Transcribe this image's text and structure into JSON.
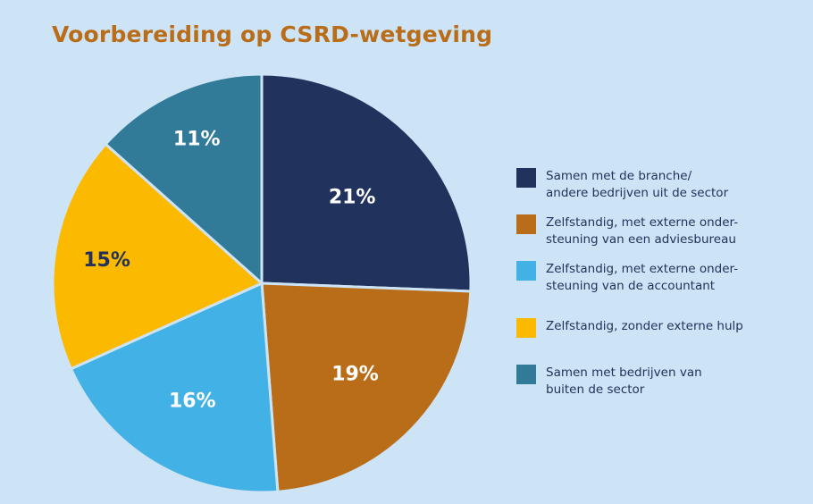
{
  "chart_data": {
    "type": "pie",
    "title": "Voorbereiding op CSRD-wetgeving",
    "legend_position": "right",
    "start": "top",
    "direction": "clockwise",
    "slices": [
      {
        "label": "Samen met de branche/ andere bedrijven uit de sector",
        "label_lines": [
          "Samen met de branche/",
          "andere bedrijven uit de sector"
        ],
        "value": 21,
        "display": "21%",
        "color": "#21335c",
        "text_color": "#ffffff"
      },
      {
        "label": "Zelfstandig, met externe ondersteuning van een adviesbureau",
        "label_lines": [
          "Zelfstandig, met externe onder-",
          "steuning van een adviesbureau"
        ],
        "value": 19,
        "display": "19%",
        "color": "#b96d18",
        "text_color": "#ffffff"
      },
      {
        "label": "Zelfstandig, met externe ondersteuning van de accountant",
        "label_lines": [
          "Zelfstandig, met externe onder-",
          "steuning van de accountant"
        ],
        "value": 16,
        "display": "16%",
        "color": "#42b1e6",
        "text_color": "#ffffff"
      },
      {
        "label": "Zelfstandig, zonder externe hulp",
        "label_lines": [
          "Zelfstandig, zonder externe hulp"
        ],
        "value": 15,
        "display": "15%",
        "color": "#fbb900",
        "text_color": "#22325a"
      },
      {
        "label": "Samen met bedrijven van buiten de sector",
        "label_lines": [
          "Samen met bedrijven van",
          "buiten de sector"
        ],
        "value": 11,
        "display": "11%",
        "color": "#317a98",
        "text_color": "#ffffff"
      }
    ]
  }
}
